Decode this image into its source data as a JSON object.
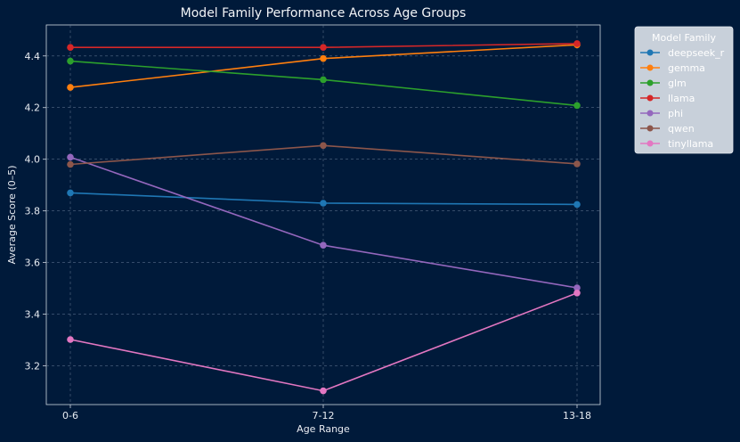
{
  "chart_data": {
    "type": "line",
    "title": "Model Family Performance Across Age Groups",
    "xlabel": "Age Range",
    "ylabel": "Average Score (0–5)",
    "categories": [
      "0-6",
      "7-12",
      "13-18"
    ],
    "ylim": [
      3.05,
      4.52
    ],
    "yticks": [
      "3.2",
      "3.4",
      "3.6",
      "3.8",
      "4.0",
      "4.2",
      "4.4"
    ],
    "grid": true,
    "legend": {
      "title": "Model Family",
      "placement": "outside-top-right"
    },
    "series": [
      {
        "name": "deepseek_r",
        "color": "#1f77b4",
        "values": [
          3.87,
          3.83,
          3.825
        ]
      },
      {
        "name": "gemma",
        "color": "#ff7f0e",
        "values": [
          4.278,
          4.39,
          4.443
        ]
      },
      {
        "name": "glm",
        "color": "#2ca02c",
        "values": [
          4.38,
          4.308,
          4.208
        ]
      },
      {
        "name": "llama",
        "color": "#d62728",
        "values": [
          4.433,
          4.433,
          4.448
        ]
      },
      {
        "name": "phi",
        "color": "#9467bd",
        "values": [
          4.008,
          3.667,
          3.502
        ]
      },
      {
        "name": "qwen",
        "color": "#8c564b",
        "values": [
          3.98,
          4.053,
          3.982
        ]
      },
      {
        "name": "tinyllama",
        "color": "#e377c2",
        "values": [
          3.302,
          3.103,
          3.482
        ]
      }
    ]
  }
}
